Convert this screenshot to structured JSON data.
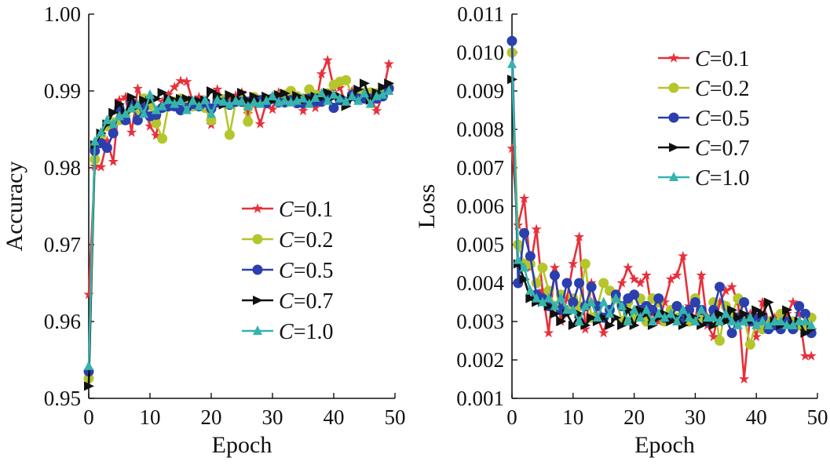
{
  "colors": {
    "C=0.1": "#e8303a",
    "C=0.2": "#b5c62c",
    "C=0.5": "#2b3fae",
    "C=0.7": "#111111",
    "C=1.0": "#35b4ad"
  },
  "chart_data": [
    {
      "type": "line",
      "xlabel": "Epoch",
      "ylabel": "Accuracy",
      "xlim": [
        0,
        50
      ],
      "ylim": [
        0.95,
        1.0
      ],
      "xticks": [
        "0",
        "10",
        "20",
        "30",
        "40",
        "50"
      ],
      "yticks": [
        "0.95",
        "0.96",
        "0.97",
        "0.98",
        "0.99",
        "1.00"
      ],
      "legend_position": "bottom-right",
      "x": [
        0,
        1,
        2,
        3,
        4,
        5,
        6,
        7,
        8,
        9,
        10,
        11,
        12,
        13,
        14,
        15,
        16,
        17,
        18,
        19,
        20,
        21,
        22,
        23,
        24,
        25,
        26,
        27,
        28,
        29,
        30,
        31,
        32,
        33,
        34,
        35,
        36,
        37,
        38,
        39,
        40,
        41,
        42,
        43,
        44,
        45,
        46,
        47,
        48,
        49
      ],
      "series": [
        {
          "name": "C=0.1",
          "marker": "star",
          "values": [
            0.9635,
            0.9802,
            0.9801,
            0.9835,
            0.9808,
            0.9888,
            0.9892,
            0.9846,
            0.9903,
            0.9883,
            0.9854,
            0.9842,
            0.9886,
            0.9895,
            0.9905,
            0.9913,
            0.9912,
            0.9886,
            0.9892,
            0.9882,
            0.9856,
            0.9902,
            0.9887,
            0.9892,
            0.9894,
            0.9898,
            0.987,
            0.9883,
            0.9857,
            0.9885,
            0.9876,
            0.9898,
            0.989,
            0.9898,
            0.9893,
            0.9874,
            0.9886,
            0.9878,
            0.9922,
            0.994,
            0.9904,
            0.9904,
            0.9884,
            0.99,
            0.9893,
            0.9893,
            0.9892,
            0.9874,
            0.9895,
            0.9935
          ]
        },
        {
          "name": "C=0.2",
          "marker": "circle",
          "values": [
            0.9526,
            0.9811,
            0.9842,
            0.9854,
            0.9859,
            0.9862,
            0.9869,
            0.988,
            0.9874,
            0.989,
            0.9881,
            0.9858,
            0.9838,
            0.988,
            0.9886,
            0.989,
            0.9882,
            0.988,
            0.9883,
            0.9878,
            0.9862,
            0.9888,
            0.9889,
            0.9843,
            0.9886,
            0.989,
            0.986,
            0.9892,
            0.9885,
            0.9885,
            0.989,
            0.9893,
            0.9895,
            0.99,
            0.9893,
            0.989,
            0.9902,
            0.9895,
            0.9893,
            0.9897,
            0.9908,
            0.9912,
            0.9914,
            0.9895,
            0.9895,
            0.9898,
            0.9898,
            0.9897,
            0.9899,
            0.9905
          ]
        },
        {
          "name": "C=0.5",
          "marker": "circle",
          "values": [
            0.9535,
            0.9822,
            0.9832,
            0.9826,
            0.9845,
            0.9878,
            0.9862,
            0.9884,
            0.9862,
            0.9878,
            0.9867,
            0.9869,
            0.9878,
            0.988,
            0.988,
            0.9875,
            0.9878,
            0.9883,
            0.988,
            0.9885,
            0.9877,
            0.9885,
            0.9885,
            0.9882,
            0.9886,
            0.9886,
            0.9886,
            0.9888,
            0.9888,
            0.9884,
            0.989,
            0.9885,
            0.9885,
            0.9888,
            0.9884,
            0.9884,
            0.989,
            0.9886,
            0.9886,
            0.9895,
            0.9878,
            0.9888,
            0.9886,
            0.9895,
            0.989,
            0.989,
            0.989,
            0.989,
            0.9893,
            0.9903
          ]
        },
        {
          "name": "C=0.7",
          "marker": "triangle-right",
          "values": [
            0.9516,
            0.983,
            0.9845,
            0.9857,
            0.9872,
            0.9883,
            0.9872,
            0.9892,
            0.988,
            0.9888,
            0.9887,
            0.989,
            0.9898,
            0.9891,
            0.9888,
            0.989,
            0.989,
            0.9888,
            0.9887,
            0.9888,
            0.99,
            0.9895,
            0.9882,
            0.9895,
            0.989,
            0.9898,
            0.9887,
            0.9893,
            0.9885,
            0.9893,
            0.9887,
            0.9895,
            0.9897,
            0.9886,
            0.9894,
            0.9887,
            0.989,
            0.9893,
            0.9891,
            0.9898,
            0.9892,
            0.9893,
            0.988,
            0.989,
            0.9902,
            0.991,
            0.9888,
            0.9898,
            0.9905,
            0.991
          ]
        },
        {
          "name": "C=1.0",
          "marker": "triangle-up",
          "values": [
            0.9542,
            0.9834,
            0.9846,
            0.9862,
            0.9857,
            0.9867,
            0.987,
            0.9877,
            0.9882,
            0.987,
            0.9895,
            0.9875,
            0.988,
            0.9888,
            0.9883,
            0.9887,
            0.9875,
            0.9887,
            0.988,
            0.9888,
            0.987,
            0.9888,
            0.9886,
            0.9882,
            0.9887,
            0.9886,
            0.988,
            0.9885,
            0.9883,
            0.9887,
            0.9893,
            0.9885,
            0.9887,
            0.9885,
            0.9887,
            0.989,
            0.9883,
            0.9891,
            0.9897,
            0.9887,
            0.9895,
            0.989,
            0.9886,
            0.9893,
            0.9887,
            0.9897,
            0.9883,
            0.9893,
            0.9895,
            0.99
          ]
        }
      ]
    },
    {
      "type": "line",
      "xlabel": "Epoch",
      "ylabel": "Loss",
      "xlim": [
        0,
        50
      ],
      "ylim": [
        0.001,
        0.011
      ],
      "xticks": [
        "0",
        "10",
        "20",
        "30",
        "40",
        "50"
      ],
      "yticks": [
        "0.001",
        "0.002",
        "0.003",
        "0.004",
        "0.005",
        "0.006",
        "0.007",
        "0.008",
        "0.009",
        "0.010",
        "0.011"
      ],
      "legend_position": "top-right",
      "x": [
        0,
        1,
        2,
        3,
        4,
        5,
        6,
        7,
        8,
        9,
        10,
        11,
        12,
        13,
        14,
        15,
        16,
        17,
        18,
        19,
        20,
        21,
        22,
        23,
        24,
        25,
        26,
        27,
        28,
        29,
        30,
        31,
        32,
        33,
        34,
        35,
        36,
        37,
        38,
        39,
        40,
        41,
        42,
        43,
        44,
        45,
        46,
        47,
        48,
        49
      ],
      "series": [
        {
          "name": "C=0.1",
          "marker": "star",
          "values": [
            0.0075,
            0.0055,
            0.0062,
            0.0044,
            0.0054,
            0.0038,
            0.0027,
            0.0044,
            0.003,
            0.0036,
            0.0045,
            0.0052,
            0.0028,
            0.004,
            0.0031,
            0.0027,
            0.0033,
            0.0036,
            0.004,
            0.0044,
            0.0041,
            0.004,
            0.0042,
            0.0032,
            0.003,
            0.0035,
            0.0041,
            0.0042,
            0.0047,
            0.0034,
            0.003,
            0.0042,
            0.0029,
            0.0026,
            0.0035,
            0.0038,
            0.0039,
            0.0035,
            0.0015,
            0.0032,
            0.0026,
            0.0035,
            0.003,
            0.0031,
            0.0029,
            0.0032,
            0.0035,
            0.0032,
            0.0021,
            0.0021
          ]
        },
        {
          "name": "C=0.2",
          "marker": "circle",
          "values": [
            0.01,
            0.005,
            0.0045,
            0.0045,
            0.004,
            0.0044,
            0.0038,
            0.0034,
            0.0037,
            0.0033,
            0.0036,
            0.0034,
            0.0045,
            0.0031,
            0.0034,
            0.004,
            0.0038,
            0.0036,
            0.003,
            0.0035,
            0.0031,
            0.0036,
            0.003,
            0.0036,
            0.0035,
            0.003,
            0.0033,
            0.0031,
            0.0032,
            0.003,
            0.0036,
            0.0031,
            0.003,
            0.0035,
            0.0025,
            0.0034,
            0.0032,
            0.0036,
            0.0031,
            0.0024,
            0.003,
            0.0028,
            0.003,
            0.0029,
            0.0032,
            0.003,
            0.003,
            0.0029,
            0.0028,
            0.0031
          ]
        },
        {
          "name": "C=0.5",
          "marker": "circle",
          "values": [
            0.0103,
            0.004,
            0.0053,
            0.0047,
            0.0037,
            0.0036,
            0.0034,
            0.0042,
            0.0033,
            0.004,
            0.0035,
            0.004,
            0.0034,
            0.0039,
            0.0034,
            0.0031,
            0.0033,
            0.0037,
            0.0034,
            0.0036,
            0.0037,
            0.0033,
            0.0034,
            0.0033,
            0.0036,
            0.0031,
            0.0031,
            0.0034,
            0.0031,
            0.0033,
            0.0035,
            0.0033,
            0.003,
            0.0033,
            0.0039,
            0.0031,
            0.0027,
            0.0031,
            0.0035,
            0.003,
            0.0031,
            0.0031,
            0.0028,
            0.0029,
            0.0028,
            0.003,
            0.0028,
            0.0034,
            0.0032,
            0.0027
          ]
        },
        {
          "name": "C=0.7",
          "marker": "triangle-right",
          "values": [
            0.0093,
            0.0045,
            0.0041,
            0.0036,
            0.0035,
            0.0035,
            0.0034,
            0.0032,
            0.003,
            0.0032,
            0.0029,
            0.0032,
            0.0029,
            0.0031,
            0.003,
            0.0031,
            0.0029,
            0.0031,
            0.0029,
            0.0033,
            0.0029,
            0.0033,
            0.0032,
            0.0029,
            0.0031,
            0.0032,
            0.003,
            0.0031,
            0.0029,
            0.0031,
            0.0031,
            0.0029,
            0.003,
            0.0029,
            0.0032,
            0.003,
            0.0033,
            0.0031,
            0.0032,
            0.003,
            0.0033,
            0.0032,
            0.0035,
            0.003,
            0.0029,
            0.0033,
            0.0029,
            0.003,
            0.0027,
            0.0028
          ]
        },
        {
          "name": "C=1.0",
          "marker": "triangle-up",
          "values": [
            0.0097,
            0.0046,
            0.0044,
            0.0038,
            0.0036,
            0.0035,
            0.0036,
            0.0034,
            0.0036,
            0.0033,
            0.0033,
            0.003,
            0.0034,
            0.0035,
            0.0031,
            0.0035,
            0.0032,
            0.0036,
            0.0034,
            0.003,
            0.0033,
            0.0031,
            0.0033,
            0.003,
            0.0032,
            0.0031,
            0.0032,
            0.003,
            0.0033,
            0.0031,
            0.003,
            0.0033,
            0.0031,
            0.0031,
            0.003,
            0.0032,
            0.003,
            0.0029,
            0.003,
            0.0031,
            0.0029,
            0.003,
            0.0029,
            0.003,
            0.003,
            0.0029,
            0.0029,
            0.003,
            0.003,
            0.0029
          ]
        }
      ]
    }
  ]
}
